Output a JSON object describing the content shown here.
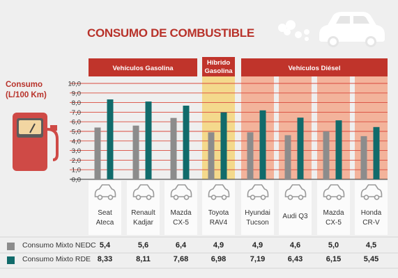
{
  "title": "CONSUMO DE COMBUSTIBLE",
  "colors": {
    "title": "#b8322a",
    "header_band": "#c0342b",
    "hybrid_band": "#f6d16b",
    "diesel_col": "#f3a88c",
    "nedc": "#8c8c8c",
    "rde": "#116b6b",
    "grid": "#d94a3c"
  },
  "icons": [
    "car-icon",
    "fuel-pump-icon",
    "car-outline-icon"
  ],
  "chart_data": {
    "type": "bar",
    "title": "CONSUMO DE COMBUSTIBLE",
    "ylabel": "Consumo (L/100 Km)",
    "ylim": [
      0,
      10
    ],
    "yticks": [
      "0,0",
      "1,0",
      "2,0",
      "3,0",
      "4,0",
      "5,0",
      "6,0",
      "7,0",
      "8,0",
      "9,0",
      "10,0"
    ],
    "grid": true,
    "groups": [
      {
        "label": "Vehículos Gasolina",
        "span": [
          0,
          2
        ]
      },
      {
        "label": "Híbrido Gasolina",
        "span": [
          3,
          3
        ]
      },
      {
        "label": "Vehículos Diésel",
        "span": [
          4,
          7
        ]
      }
    ],
    "categories": [
      [
        "Seat",
        "Ateca"
      ],
      [
        "Renault",
        "Kadjar"
      ],
      [
        "Mazda",
        "CX-5"
      ],
      [
        "Toyota",
        "RAV4"
      ],
      [
        "Hyundai",
        "Tucson"
      ],
      [
        "Audi Q3"
      ],
      [
        "Mazda",
        "CX-5"
      ],
      [
        "Honda",
        "CR-V"
      ]
    ],
    "series": [
      {
        "name": "Consumo Mixto NEDC",
        "values": [
          5.4,
          5.6,
          6.4,
          4.9,
          4.9,
          4.6,
          5.0,
          4.5
        ],
        "labels": [
          "5,4",
          "5,6",
          "6,4",
          "4,9",
          "4,9",
          "4,6",
          "5,0",
          "4,5"
        ]
      },
      {
        "name": "Consumo Mixto RDE",
        "values": [
          8.33,
          8.11,
          7.68,
          6.98,
          7.19,
          6.43,
          6.15,
          5.45
        ],
        "labels": [
          "8,33",
          "8,11",
          "7,68",
          "6,98",
          "7,19",
          "6,43",
          "6,15",
          "5,45"
        ]
      }
    ]
  }
}
